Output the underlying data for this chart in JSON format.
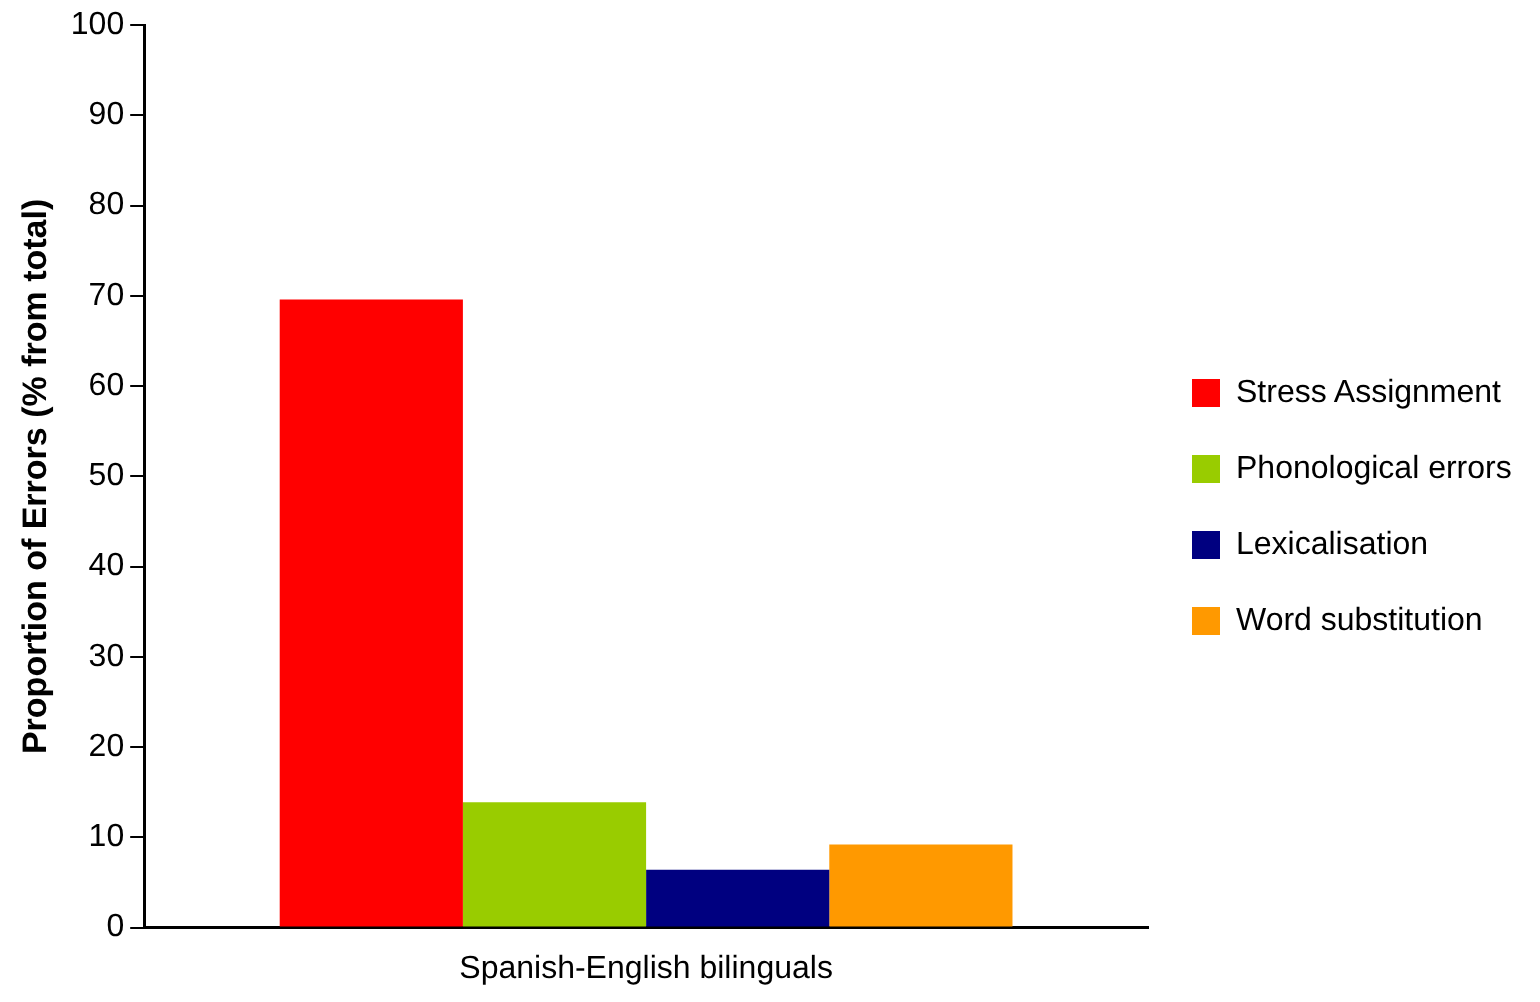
{
  "chart_data": {
    "type": "bar",
    "ylabel": "Proportion of Errors (% from total)",
    "categories": [
      "Spanish-English bilinguals"
    ],
    "series": [
      {
        "name": "Stress Assignment",
        "color": "#ff0000",
        "values": [
          69.6
        ]
      },
      {
        "name": "Phonological errors",
        "color": "#99cc00",
        "values": [
          13.9
        ]
      },
      {
        "name": "Lexicalisation",
        "color": "#000080",
        "values": [
          6.4
        ]
      },
      {
        "name": "Word substitution",
        "color": "#ff9900",
        "values": [
          9.2
        ]
      }
    ],
    "ylim": [
      0,
      100
    ],
    "yticks": [
      0,
      10,
      20,
      30,
      40,
      50,
      60,
      70,
      80,
      90,
      100
    ],
    "grid": false,
    "legend": "right"
  }
}
